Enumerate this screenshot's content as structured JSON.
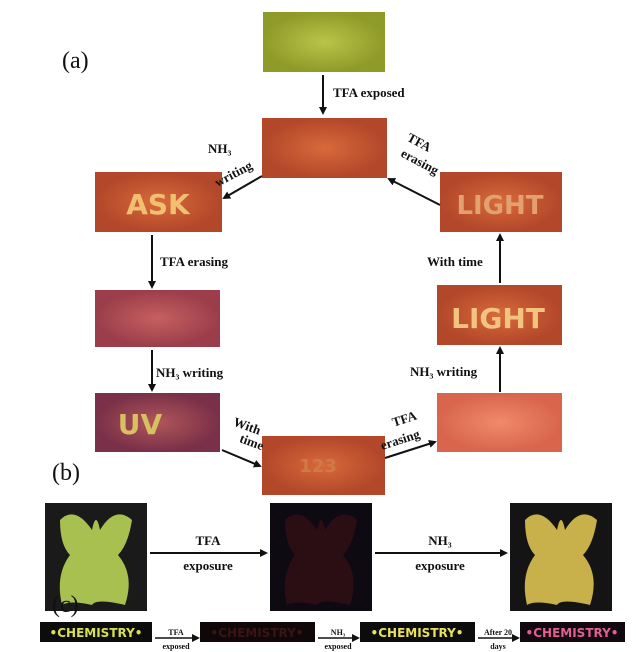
{
  "panel_a": {
    "label": "(a)",
    "image_texts": {
      "ask": "ASK",
      "uv": "UV",
      "num": "123",
      "light_bright": "LIGHT",
      "light_faint": "LIGHT"
    },
    "arrows": {
      "tfa_exposed": "TFA exposed",
      "nh3_writing_1": [
        "NH₃",
        "writing"
      ],
      "tfa_erasing_1": "TFA erasing",
      "nh3_writing_2": "NH₃  writing",
      "with_time_1": [
        "With",
        "time"
      ],
      "tfa_erasing_2": [
        "TFA",
        "erasing"
      ],
      "nh3_writing_3": "NH₃  writing",
      "with_time_2": "With time",
      "tfa_erasing_3": [
        "TFA",
        "erasing"
      ]
    }
  },
  "panel_b": {
    "label": "(b)",
    "arrows": {
      "tfa": [
        "TFA",
        "exposure"
      ],
      "nh3": [
        "NH₃",
        "exposure"
      ]
    }
  },
  "panel_c": {
    "label": "(c)",
    "image_text": "•CHEMISTRY•",
    "arrows": {
      "tfa": [
        "TFA",
        "exposed"
      ],
      "nh3": [
        "NH₃",
        "exposed"
      ],
      "after": [
        "After 20",
        "days"
      ]
    }
  }
}
